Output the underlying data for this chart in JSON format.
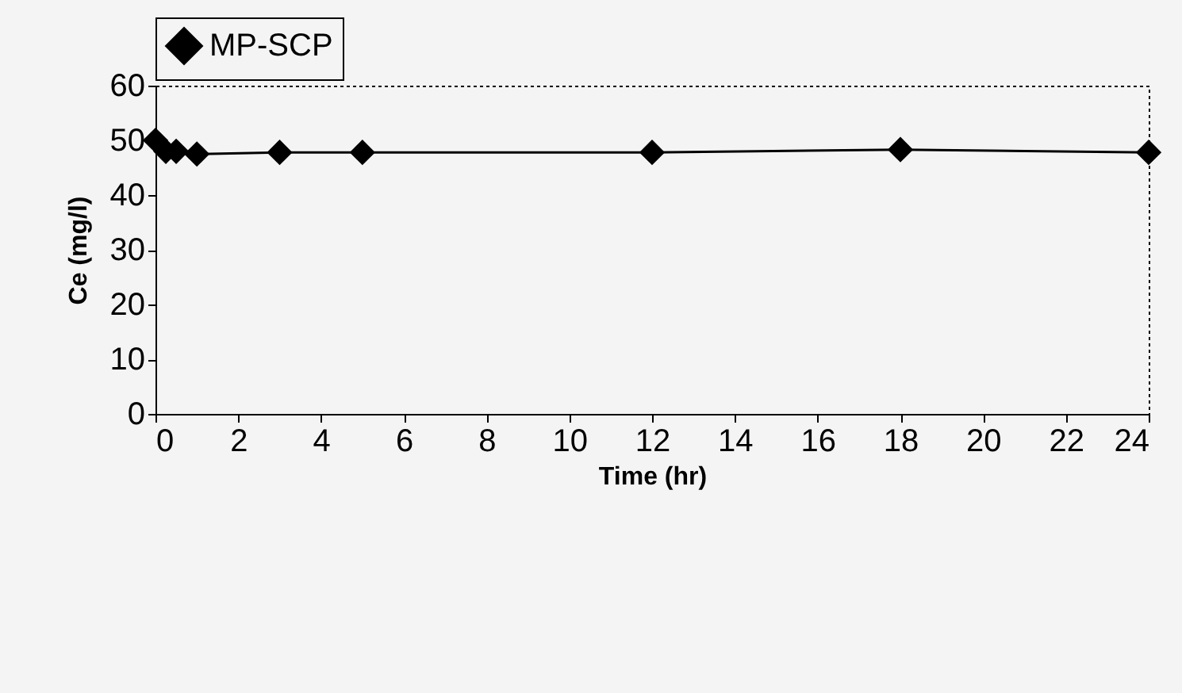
{
  "chart_data": {
    "type": "line",
    "xlabel": "Time (hr)",
    "ylabel": "Ce (mg/l)",
    "x": [
      0,
      0.25,
      0.5,
      1,
      3,
      5,
      12,
      18,
      24
    ],
    "series": [
      {
        "name": "MP-SCP",
        "color": "#000000",
        "values": [
          50,
          48,
          48,
          47.5,
          47.8,
          47.8,
          47.8,
          48.3,
          47.8
        ]
      }
    ],
    "xlim": [
      0,
      24
    ],
    "xticks": [
      0,
      2,
      4,
      6,
      8,
      10,
      12,
      14,
      16,
      18,
      20,
      22,
      24
    ],
    "ylim": [
      0,
      60
    ],
    "yticks": [
      0,
      10,
      20,
      30,
      40,
      50,
      60
    ],
    "grid": false,
    "legend": "top",
    "marker": "diamond",
    "line_style": "solid"
  }
}
